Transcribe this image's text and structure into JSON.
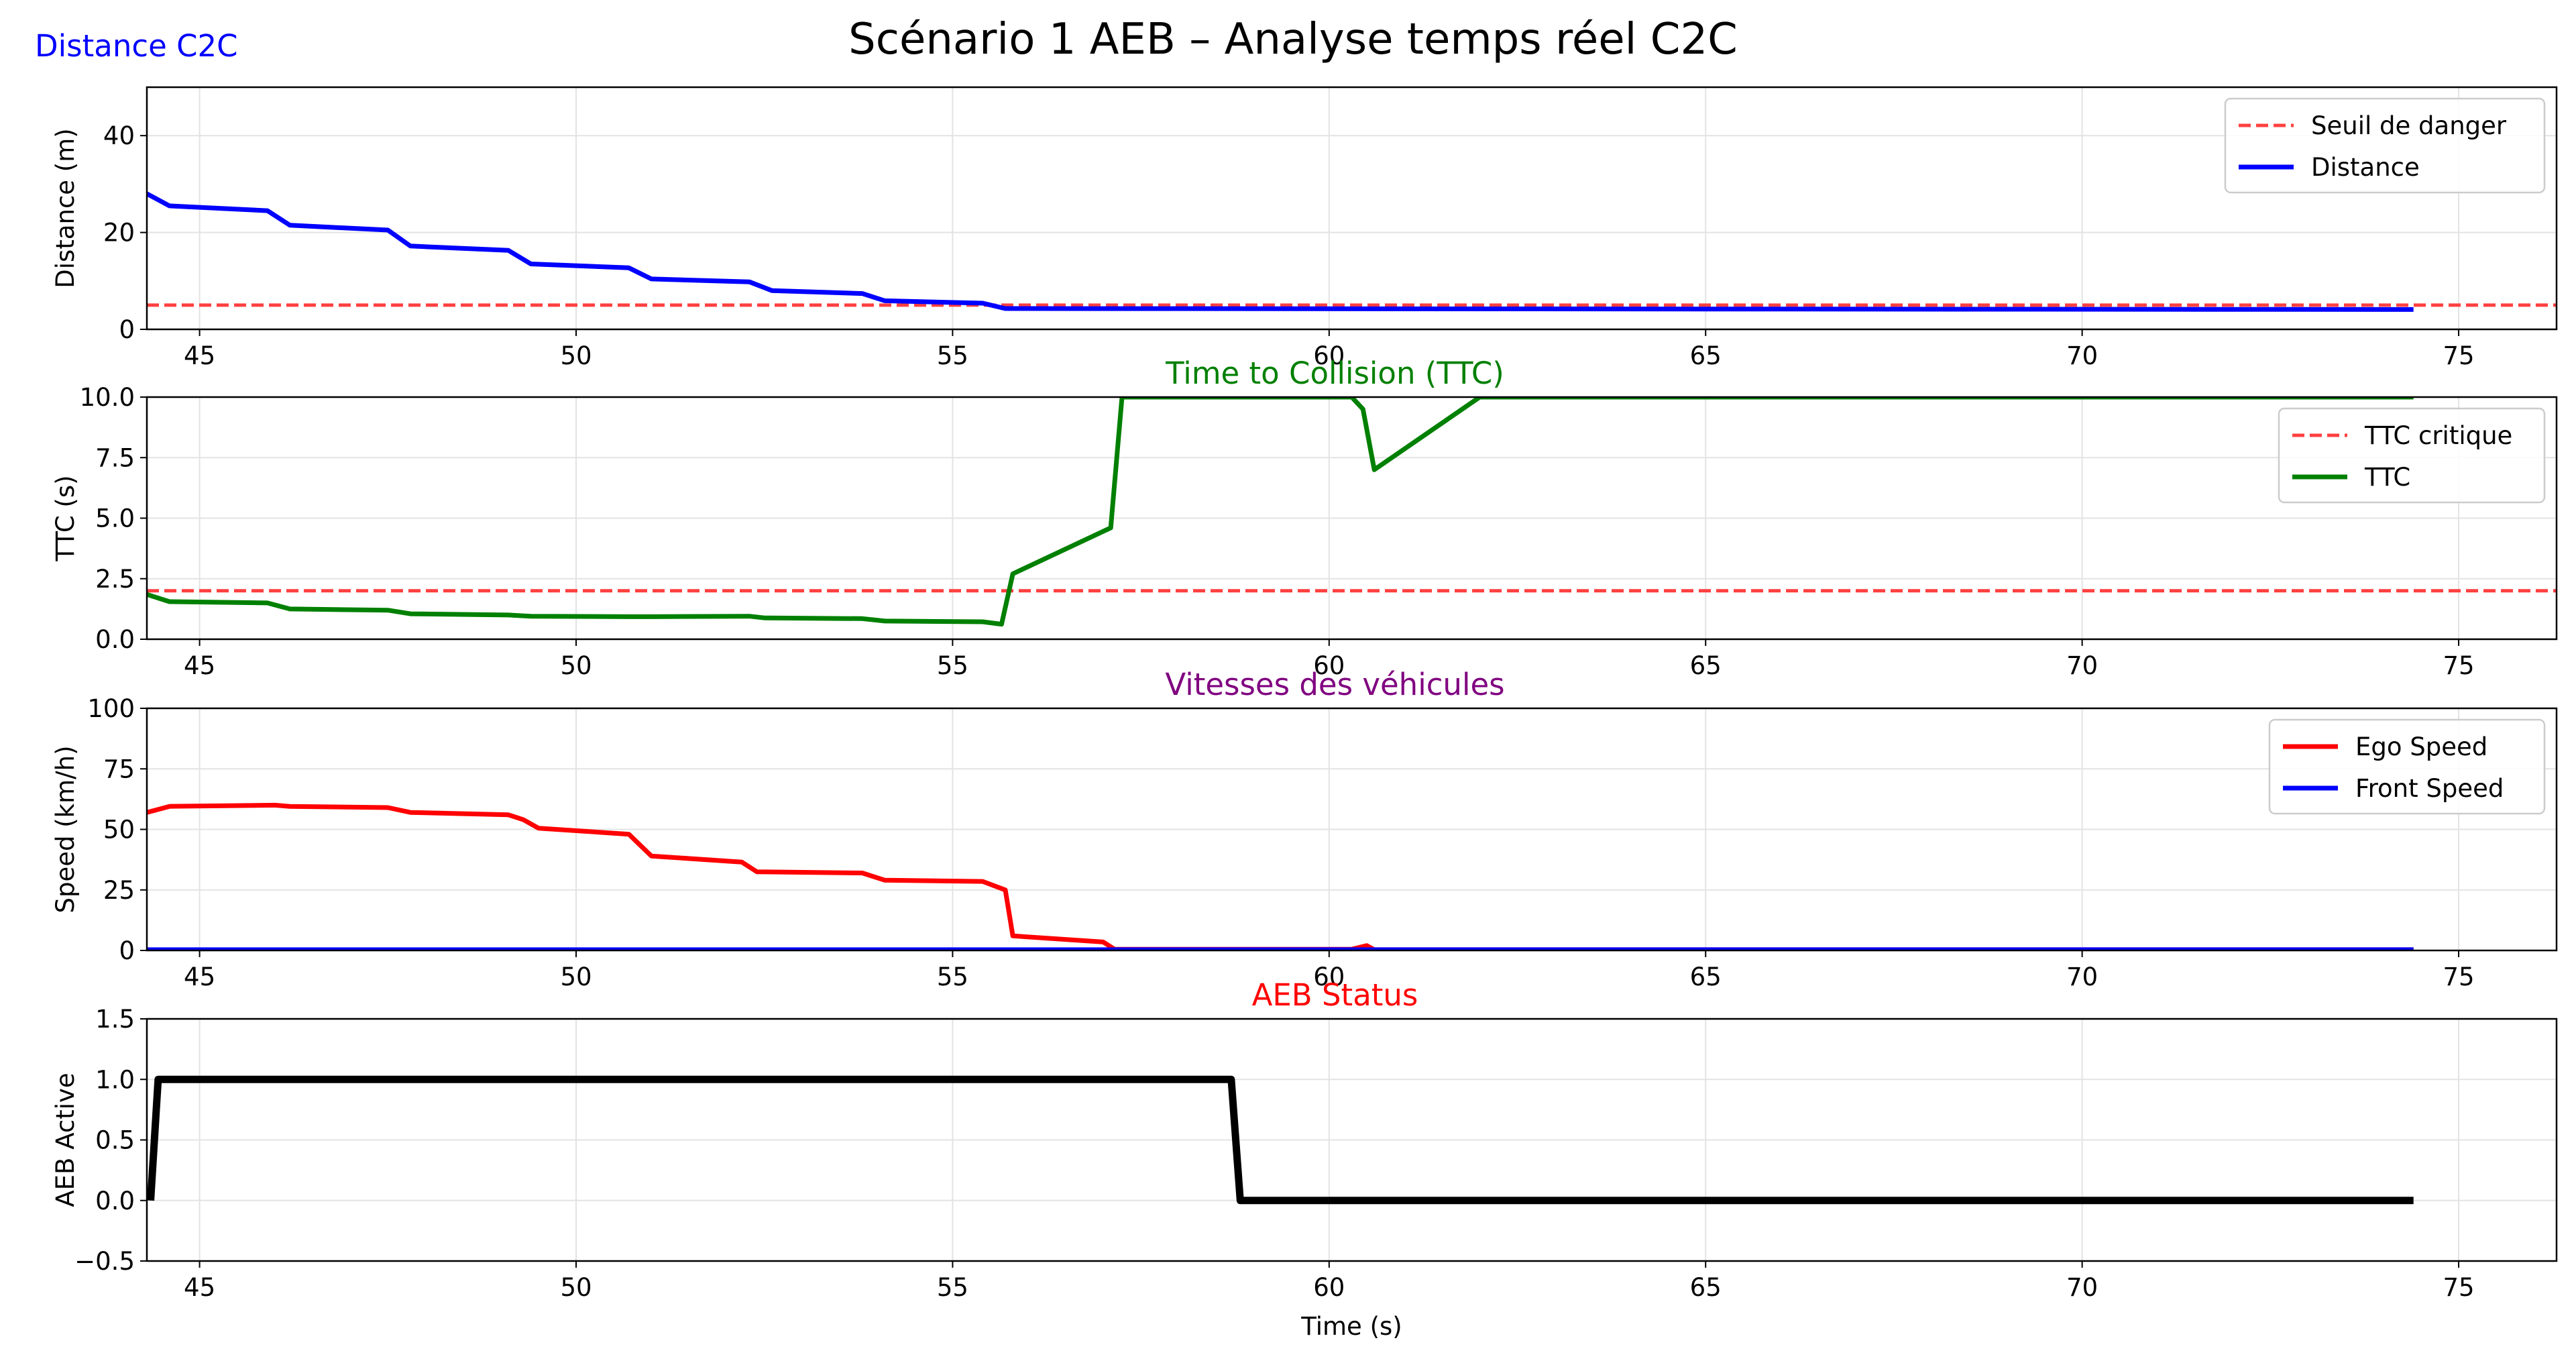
{
  "figure": {
    "suptitle": "Scénario 1 AEB  – Analyse temps réel C2C",
    "corner_label": "Distance C2C",
    "corner_label_color": "#0000ff"
  },
  "chart_data": [
    {
      "type": "line",
      "title": "",
      "xlabel": "",
      "ylabel": "Distance (m)",
      "xlim": [
        44.3,
        76.3
      ],
      "ylim": [
        0,
        50
      ],
      "xticks": [
        45,
        50,
        55,
        60,
        65,
        70,
        75
      ],
      "yticks": [
        0,
        20,
        40
      ],
      "grid": true,
      "legend_position": "upper right",
      "series": [
        {
          "name": "Seuil de danger",
          "style": "dashed",
          "color": "#ff4040",
          "x": [
            44.3,
            76.3
          ],
          "y": [
            5,
            5
          ]
        },
        {
          "name": "Distance",
          "style": "solid",
          "color": "#0000ff",
          "x": [
            44.3,
            44.6,
            45.9,
            46.2,
            47.5,
            47.8,
            49.1,
            49.4,
            50.7,
            51.0,
            52.3,
            52.6,
            53.8,
            54.1,
            55.4,
            55.7,
            74.4
          ],
          "y": [
            28.0,
            25.5,
            24.5,
            21.5,
            20.5,
            17.2,
            16.3,
            13.5,
            12.7,
            10.4,
            9.8,
            8.0,
            7.4,
            5.9,
            5.4,
            4.3,
            4.1
          ]
        }
      ]
    },
    {
      "type": "line",
      "title": "Time to Collision (TTC)",
      "title_color": "#008000",
      "xlabel": "",
      "ylabel": "TTC (s)",
      "xlim": [
        44.3,
        76.3
      ],
      "ylim": [
        0,
        10
      ],
      "xticks": [
        45,
        50,
        55,
        60,
        65,
        70,
        75
      ],
      "yticks": [
        "0.0",
        "2.5",
        "5.0",
        "7.5",
        "10.0"
      ],
      "grid": true,
      "legend_position": "upper right",
      "series": [
        {
          "name": "TTC critique",
          "style": "dashed",
          "color": "#ff4040",
          "x": [
            44.3,
            76.3
          ],
          "y": [
            2,
            2
          ]
        },
        {
          "name": "TTC",
          "style": "solid",
          "color": "#008000",
          "x": [
            44.3,
            44.6,
            45.9,
            46.2,
            47.5,
            47.8,
            49.1,
            49.4,
            50.7,
            51.0,
            52.3,
            52.5,
            53.8,
            54.1,
            55.4,
            55.65,
            55.8,
            57.1,
            57.25,
            60.3,
            60.45,
            60.6,
            62.0,
            74.4
          ],
          "y": [
            1.85,
            1.55,
            1.5,
            1.25,
            1.2,
            1.05,
            1.0,
            0.95,
            0.93,
            0.93,
            0.95,
            0.88,
            0.85,
            0.75,
            0.72,
            0.62,
            2.7,
            4.6,
            10,
            10,
            9.5,
            7.0,
            10,
            10
          ]
        }
      ]
    },
    {
      "type": "line",
      "title": "Vitesses des véhicules",
      "title_color": "#800080",
      "xlabel": "",
      "ylabel": "Speed (km/h)",
      "xlim": [
        44.3,
        76.3
      ],
      "ylim": [
        0,
        100
      ],
      "xticks": [
        45,
        50,
        55,
        60,
        65,
        70,
        75
      ],
      "yticks": [
        0,
        25,
        50,
        75,
        100
      ],
      "grid": true,
      "legend_position": "upper right",
      "series": [
        {
          "name": "Ego Speed",
          "style": "solid",
          "color": "#ff0000",
          "x": [
            44.3,
            44.6,
            46.0,
            46.2,
            47.5,
            47.8,
            49.1,
            49.3,
            49.5,
            50.7,
            51.0,
            52.2,
            52.4,
            53.8,
            54.1,
            55.4,
            55.7,
            55.8,
            57.0,
            57.15,
            60.3,
            60.5,
            60.6,
            74.4
          ],
          "y": [
            57,
            59.5,
            60,
            59.5,
            59,
            57,
            56,
            54,
            50.5,
            48,
            39,
            36.5,
            32.5,
            32,
            29,
            28.5,
            25,
            6,
            3.5,
            0.5,
            0.5,
            2,
            0.3,
            0.3
          ]
        },
        {
          "name": "Front Speed",
          "style": "solid",
          "color": "#0000ff",
          "x": [
            44.3,
            74.4
          ],
          "y": [
            0.3,
            0.3
          ]
        }
      ]
    },
    {
      "type": "line",
      "title": "AEB Status",
      "title_color": "#ff0000",
      "xlabel": "Time (s)",
      "ylabel": "AEB Active",
      "xlim": [
        44.3,
        76.3
      ],
      "ylim": [
        -0.5,
        1.5
      ],
      "xticks": [
        45,
        50,
        55,
        60,
        65,
        70,
        75
      ],
      "yticks": [
        "−0.5",
        "0.0",
        "0.5",
        "1.0",
        "1.5"
      ],
      "grid": true,
      "legend_position": "none",
      "series": [
        {
          "name": "",
          "style": "solid",
          "color": "#000000",
          "x": [
            44.35,
            44.45,
            58.7,
            58.82,
            74.4
          ],
          "y": [
            0,
            1,
            1,
            0,
            0
          ]
        }
      ]
    }
  ]
}
